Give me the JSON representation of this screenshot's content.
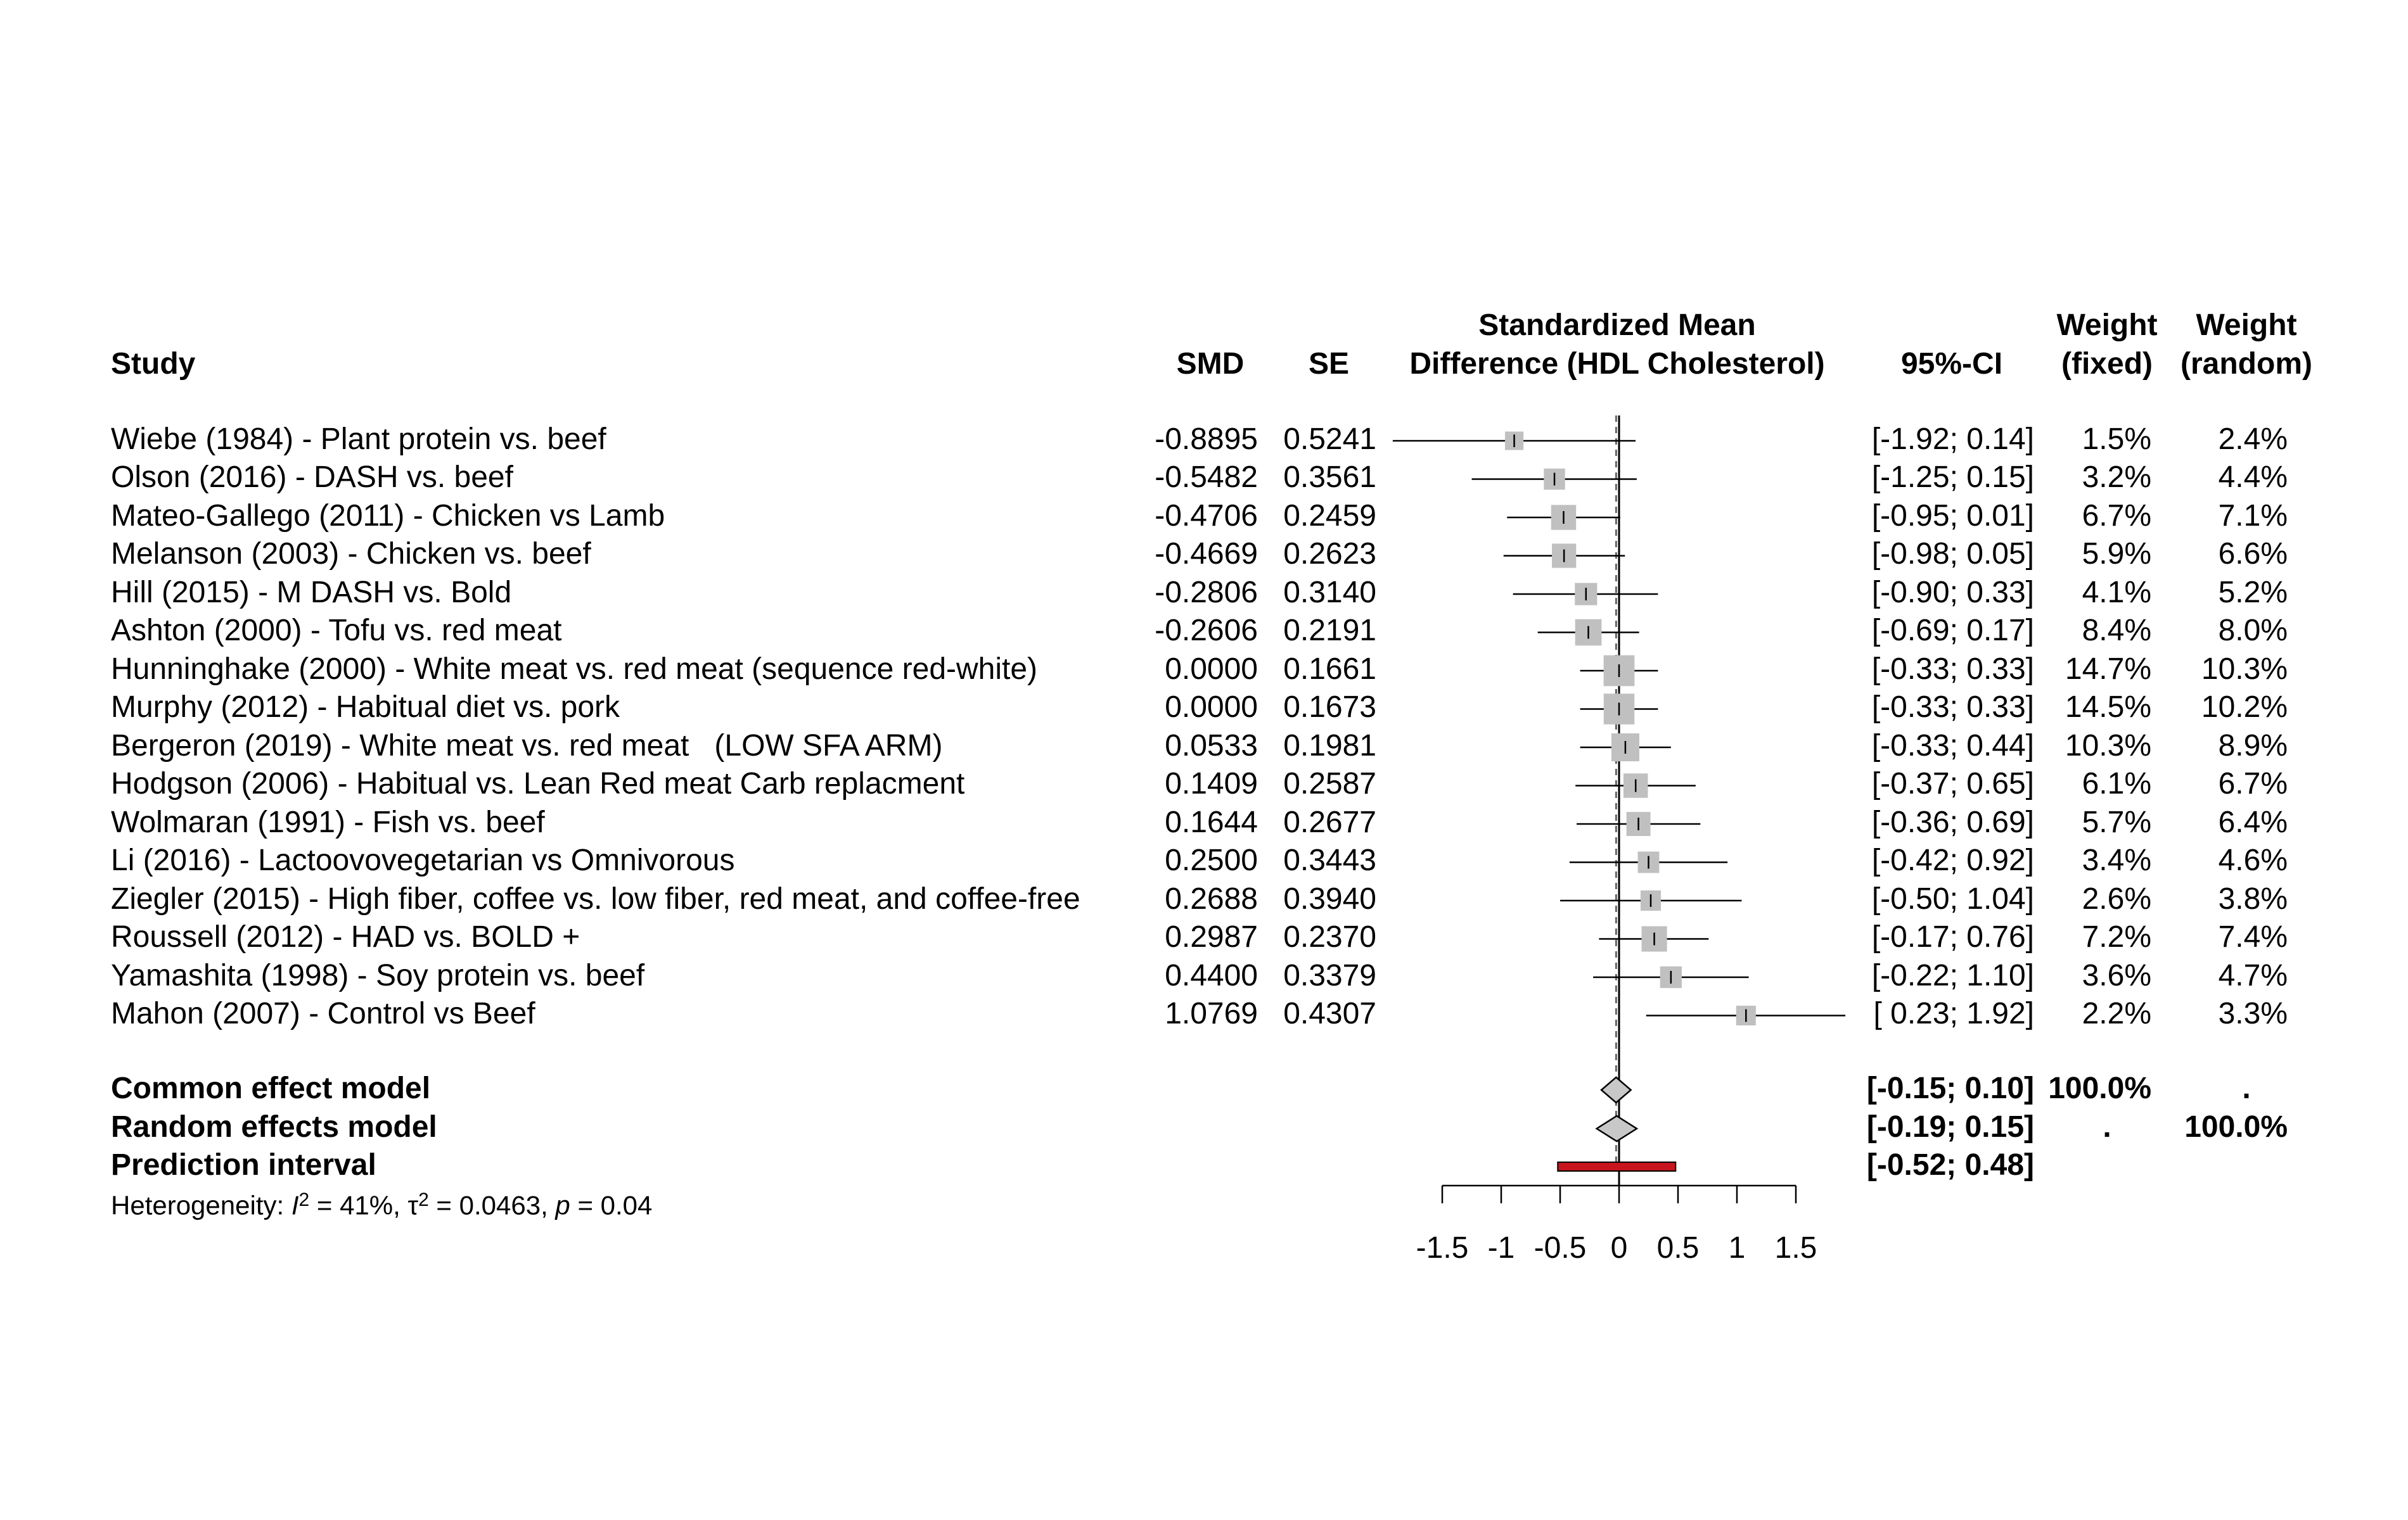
{
  "chart_data": {
    "type": "forest",
    "headers": {
      "study": "Study",
      "smd": "SMD",
      "se": "SE",
      "plot_line1": "Standardized Mean",
      "plot_line2": "Difference (HDL Cholesterol)",
      "ci": "95%-CI",
      "weight_fixed_line1": "Weight",
      "weight_fixed_line2": "(fixed)",
      "weight_random_line1": "Weight",
      "weight_random_line2": "(random)"
    },
    "studies": [
      {
        "label": "Wiebe (1984) - Plant protein vs. beef",
        "smd": "-0.8895",
        "se": "0.5241",
        "ci": "[-1.92; 0.14]",
        "w_fixed": "1.5%",
        "w_random": "2.4%",
        "est": -0.8895,
        "lo": -1.92,
        "hi": 0.14,
        "wf": 1.5
      },
      {
        "label": "Olson (2016) - DASH vs. beef",
        "smd": "-0.5482",
        "se": "0.3561",
        "ci": "[-1.25; 0.15]",
        "w_fixed": "3.2%",
        "w_random": "4.4%",
        "est": -0.5482,
        "lo": -1.25,
        "hi": 0.15,
        "wf": 3.2
      },
      {
        "label": "Mateo-Gallego (2011) - Chicken vs Lamb",
        "smd": "-0.4706",
        "se": "0.2459",
        "ci": "[-0.95; 0.01]",
        "w_fixed": "6.7%",
        "w_random": "7.1%",
        "est": -0.4706,
        "lo": -0.95,
        "hi": 0.01,
        "wf": 6.7
      },
      {
        "label": "Melanson (2003) - Chicken vs. beef",
        "smd": "-0.4669",
        "se": "0.2623",
        "ci": "[-0.98; 0.05]",
        "w_fixed": "5.9%",
        "w_random": "6.6%",
        "est": -0.4669,
        "lo": -0.98,
        "hi": 0.05,
        "wf": 5.9
      },
      {
        "label": "Hill (2015) - M DASH vs. Bold",
        "smd": "-0.2806",
        "se": "0.3140",
        "ci": "[-0.90; 0.33]",
        "w_fixed": "4.1%",
        "w_random": "5.2%",
        "est": -0.2806,
        "lo": -0.9,
        "hi": 0.33,
        "wf": 4.1
      },
      {
        "label": "Ashton (2000) - Tofu vs. red meat",
        "smd": "-0.2606",
        "se": "0.2191",
        "ci": "[-0.69; 0.17]",
        "w_fixed": "8.4%",
        "w_random": "8.0%",
        "est": -0.2606,
        "lo": -0.69,
        "hi": 0.17,
        "wf": 8.4
      },
      {
        "label": "Hunninghake (2000) - White meat vs. red meat (sequence red-white)",
        "smd": "0.0000",
        "se": "0.1661",
        "ci": "[-0.33; 0.33]",
        "w_fixed": "14.7%",
        "w_random": "10.3%",
        "est": 0.0,
        "lo": -0.33,
        "hi": 0.33,
        "wf": 14.7
      },
      {
        "label": "Murphy (2012) - Habitual diet vs. pork",
        "smd": "0.0000",
        "se": "0.1673",
        "ci": "[-0.33; 0.33]",
        "w_fixed": "14.5%",
        "w_random": "10.2%",
        "est": 0.0,
        "lo": -0.33,
        "hi": 0.33,
        "wf": 14.5
      },
      {
        "label": "Bergeron (2019) - White meat vs. red meat   (LOW SFA ARM)",
        "smd": "0.0533",
        "se": "0.1981",
        "ci": "[-0.33; 0.44]",
        "w_fixed": "10.3%",
        "w_random": "8.9%",
        "est": 0.0533,
        "lo": -0.33,
        "hi": 0.44,
        "wf": 10.3
      },
      {
        "label": "Hodgson (2006) - Habitual vs. Lean Red meat Carb replacment",
        "smd": "0.1409",
        "se": "0.2587",
        "ci": "[-0.37; 0.65]",
        "w_fixed": "6.1%",
        "w_random": "6.7%",
        "est": 0.1409,
        "lo": -0.37,
        "hi": 0.65,
        "wf": 6.1
      },
      {
        "label": "Wolmaran (1991) - Fish vs. beef",
        "smd": "0.1644",
        "se": "0.2677",
        "ci": "[-0.36; 0.69]",
        "w_fixed": "5.7%",
        "w_random": "6.4%",
        "est": 0.1644,
        "lo": -0.36,
        "hi": 0.69,
        "wf": 5.7
      },
      {
        "label": "Li (2016) - Lactoovovegetarian vs Omnivorous",
        "smd": "0.2500",
        "se": "0.3443",
        "ci": "[-0.42; 0.92]",
        "w_fixed": "3.4%",
        "w_random": "4.6%",
        "est": 0.25,
        "lo": -0.42,
        "hi": 0.92,
        "wf": 3.4
      },
      {
        "label": "Ziegler (2015) - High fiber, coffee vs. low fiber, red meat, and coffee-free",
        "smd": "0.2688",
        "se": "0.3940",
        "ci": "[-0.50; 1.04]",
        "w_fixed": "2.6%",
        "w_random": "3.8%",
        "est": 0.2688,
        "lo": -0.5,
        "hi": 1.04,
        "wf": 2.6
      },
      {
        "label": "Roussell (2012) - HAD vs. BOLD +",
        "smd": "0.2987",
        "se": "0.2370",
        "ci": "[-0.17; 0.76]",
        "w_fixed": "7.2%",
        "w_random": "7.4%",
        "est": 0.2987,
        "lo": -0.17,
        "hi": 0.76,
        "wf": 7.2
      },
      {
        "label": "Yamashita (1998) - Soy protein vs. beef",
        "smd": "0.4400",
        "se": "0.3379",
        "ci": "[-0.22; 1.10]",
        "w_fixed": "3.6%",
        "w_random": "4.7%",
        "est": 0.44,
        "lo": -0.22,
        "hi": 1.1,
        "wf": 3.6
      },
      {
        "label": "Mahon (2007) - Control vs Beef",
        "smd": "1.0769",
        "se": "0.4307",
        "ci": "[ 0.23; 1.92]",
        "w_fixed": "2.2%",
        "w_random": "3.3%",
        "est": 1.0769,
        "lo": 0.23,
        "hi": 1.92,
        "wf": 2.2
      }
    ],
    "summary": {
      "common": {
        "label": "Common effect model",
        "ci": "[-0.15; 0.10]",
        "w_fixed": "100.0%",
        "w_random": ".",
        "est": -0.025,
        "lo": -0.15,
        "hi": 0.1
      },
      "random": {
        "label": "Random effects model",
        "ci": "[-0.19; 0.15]",
        "w_fixed": ".",
        "w_random": "100.0%",
        "est": -0.02,
        "lo": -0.19,
        "hi": 0.15
      },
      "prediction": {
        "label": "Prediction interval",
        "ci": "[-0.52; 0.48]",
        "lo": -0.52,
        "hi": 0.48
      }
    },
    "heterogeneity": {
      "prefix": "Heterogeneity: ",
      "i2_symbol": "I",
      "i2_value": " = 41%, ",
      "tau_symbol": "τ",
      "tau_value": " = 0.0463, ",
      "p_symbol": "p",
      "p_value": " = 0.04"
    },
    "x_axis": {
      "ticks": [
        -1.5,
        -1,
        -0.5,
        0,
        0.5,
        1,
        1.5
      ],
      "tick_labels": [
        "-1.5",
        "-1",
        "-0.5",
        "0",
        "0.5",
        "1",
        "1.5"
      ],
      "xlim": [
        -1.5,
        1.5
      ],
      "clip_range": [
        -2.0,
        1.95
      ]
    },
    "colors": {
      "box": "#c0c0c0",
      "diamond": "#c8c8c8",
      "prediction": "#c8141e",
      "line": "#000000"
    }
  }
}
